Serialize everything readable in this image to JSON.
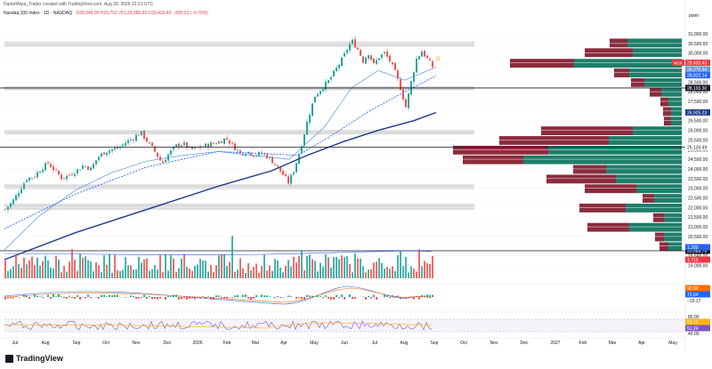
{
  "header": {
    "text": "DanteMejia_Trader created with TradingView.com, Aug 28, 2026 22:21 UTC"
  },
  "legend": {
    "symbol": "Nasdaq 100 Index · 1D · NASDAQ",
    "ohlc": "O29,545.90  H29,752.78  L29,385.92  C29,433.43  −208.13 (−0.70%)"
  },
  "price_axis": {
    "header": "point",
    "labels": {
      "NDX": "NDX",
      "last": "29,433.43",
      "ma1": "29,270.54",
      "ma2": "28,823.14",
      "ma3": "26,925.23",
      "line_a": "28,193.30",
      "line_b": "25,133.49",
      "line_c": "20,689.70",
      "vol1": "1.280",
      "vol2": "1.716",
      "macd1": "92.80",
      "macd2": "72.64",
      "macd3": "−20.17",
      "rsi_hi": "80.00",
      "rsi1": "53.15",
      "rsi2": "51.24",
      "rsi_lo": "40.00"
    }
  },
  "brand": {
    "name": "TradingView"
  },
  "colors": {
    "up": "#26a69a",
    "down": "#ef5350",
    "ma_thin": "#5b9bd5",
    "ma_dotted": "#2962ff",
    "ma_thick": "#1e3a8a",
    "zone": "#d6d6d6",
    "vp_up": "#1e7e6a",
    "vp_down": "#8b2c3c"
  },
  "chart_data": {
    "type": "candlestick",
    "y_ticks": [
      "31,000.00",
      "30,500.00",
      "30,000.00",
      "29,500.00",
      "29,000.00",
      "28,500.00",
      "28,000.00",
      "27,500.00",
      "27,000.00",
      "26,500.00",
      "26,000.00",
      "25,500.00",
      "25,000.00",
      "24,500.00",
      "24,000.00",
      "23,500.00",
      "23,000.00",
      "22,500.00",
      "22,000.00",
      "21,500.00",
      "21,000.00",
      "20,500.00",
      "20,000.00",
      "19,500.00",
      "19,000.00"
    ],
    "x_ticks": [
      "Jul",
      "Aug",
      "Sep",
      "Oct",
      "Nov",
      "Dec",
      "2026",
      "Feb",
      "Mar",
      "Apr",
      "May",
      "Jun",
      "Jul",
      "Aug",
      "Sep",
      "Oct",
      "Nov",
      "Dec",
      "2027",
      "Feb",
      "Mar",
      "Apr",
      "May"
    ],
    "ylim": [
      18700,
      31600
    ],
    "close_path": [
      [
        0,
        21900
      ],
      [
        8,
        22300
      ],
      [
        16,
        22900
      ],
      [
        24,
        23500
      ],
      [
        32,
        23600
      ],
      [
        40,
        24000
      ],
      [
        48,
        24300
      ],
      [
        56,
        23900
      ],
      [
        64,
        23500
      ],
      [
        72,
        23700
      ],
      [
        80,
        23900
      ],
      [
        88,
        24200
      ],
      [
        96,
        24000
      ],
      [
        104,
        24600
      ],
      [
        112,
        24900
      ],
      [
        120,
        25000
      ],
      [
        128,
        25100
      ],
      [
        136,
        25400
      ],
      [
        144,
        25600
      ],
      [
        152,
        25900
      ],
      [
        160,
        25400
      ],
      [
        168,
        24900
      ],
      [
        176,
        24300
      ],
      [
        184,
        24800
      ],
      [
        192,
        25200
      ],
      [
        200,
        25300
      ],
      [
        208,
        25000
      ],
      [
        216,
        25100
      ],
      [
        224,
        25200
      ],
      [
        232,
        25300
      ],
      [
        240,
        25400
      ],
      [
        248,
        25600
      ],
      [
        256,
        25200
      ],
      [
        264,
        24800
      ],
      [
        272,
        24900
      ],
      [
        280,
        24700
      ],
      [
        288,
        24800
      ],
      [
        296,
        24600
      ],
      [
        304,
        24200
      ],
      [
        312,
        23700
      ],
      [
        318,
        23300
      ],
      [
        324,
        23900
      ],
      [
        332,
        25100
      ],
      [
        340,
        26600
      ],
      [
        348,
        27800
      ],
      [
        356,
        28200
      ],
      [
        364,
        28600
      ],
      [
        372,
        29200
      ],
      [
        380,
        29800
      ],
      [
        386,
        30400
      ],
      [
        390,
        30600
      ],
      [
        396,
        30200
      ],
      [
        402,
        29600
      ],
      [
        408,
        30000
      ],
      [
        414,
        29400
      ],
      [
        420,
        29800
      ],
      [
        426,
        30000
      ],
      [
        432,
        29600
      ],
      [
        438,
        29000
      ],
      [
        444,
        28200
      ],
      [
        450,
        27200
      ],
      [
        456,
        28500
      ],
      [
        462,
        29700
      ],
      [
        468,
        30100
      ],
      [
        474,
        29700
      ],
      [
        480,
        29300
      ],
      [
        485,
        29430
      ]
    ],
    "ma_thin": [
      [
        0,
        19800
      ],
      [
        40,
        21600
      ],
      [
        80,
        22900
      ],
      [
        120,
        23800
      ],
      [
        160,
        24400
      ],
      [
        200,
        24700
      ],
      [
        240,
        24900
      ],
      [
        280,
        24700
      ],
      [
        320,
        24500
      ],
      [
        360,
        26200
      ],
      [
        390,
        28200
      ],
      [
        420,
        29100
      ],
      [
        450,
        28600
      ],
      [
        485,
        29270
      ]
    ],
    "ma_dotted": [
      [
        0,
        20900
      ],
      [
        80,
        22700
      ],
      [
        160,
        24100
      ],
      [
        240,
        24900
      ],
      [
        290,
        24800
      ],
      [
        330,
        24700
      ],
      [
        370,
        25800
      ],
      [
        410,
        27000
      ],
      [
        450,
        28000
      ],
      [
        485,
        28823
      ]
    ],
    "ma_thick": [
      [
        0,
        19300
      ],
      [
        80,
        20700
      ],
      [
        160,
        21900
      ],
      [
        240,
        23100
      ],
      [
        300,
        23900
      ],
      [
        340,
        24700
      ],
      [
        380,
        25400
      ],
      [
        420,
        26000
      ],
      [
        460,
        26500
      ],
      [
        485,
        26925
      ]
    ],
    "zones": [
      [
        28280,
        28070
      ],
      [
        30600,
        30330
      ],
      [
        26030,
        25780
      ],
      [
        23200,
        22950
      ],
      [
        22200,
        21880
      ]
    ],
    "hlines": [
      28193.3,
      25133.49
    ],
    "volume_profile": [
      {
        "price": 30500,
        "up": 61,
        "down": 20
      },
      {
        "price": 30000,
        "up": 55,
        "down": 54
      },
      {
        "price": 29450,
        "up": 121,
        "down": 72
      },
      {
        "price": 28950,
        "up": 59,
        "down": 17
      },
      {
        "price": 28450,
        "up": 42,
        "down": 15
      },
      {
        "price": 27950,
        "up": 23,
        "down": 13
      },
      {
        "price": 27450,
        "up": 15,
        "down": 9
      },
      {
        "price": 26950,
        "up": 12,
        "down": 9
      },
      {
        "price": 26450,
        "up": 12,
        "down": 8
      },
      {
        "price": 25950,
        "up": 55,
        "down": 103
      },
      {
        "price": 25450,
        "up": 82,
        "down": 123
      },
      {
        "price": 24950,
        "up": 150,
        "down": 107
      },
      {
        "price": 24450,
        "up": 178,
        "down": 68
      },
      {
        "price": 23950,
        "up": 85,
        "down": 37
      },
      {
        "price": 23450,
        "up": 74,
        "down": 78
      },
      {
        "price": 22950,
        "up": 51,
        "down": 58
      },
      {
        "price": 22450,
        "up": 31,
        "down": 13
      },
      {
        "price": 21950,
        "up": 63,
        "down": 52
      },
      {
        "price": 21450,
        "up": 20,
        "down": 12
      },
      {
        "price": 20950,
        "up": 59,
        "down": 47
      },
      {
        "price": 20450,
        "up": 20,
        "down": 10
      },
      {
        "price": 19950,
        "up": 15,
        "down": 10
      }
    ]
  }
}
